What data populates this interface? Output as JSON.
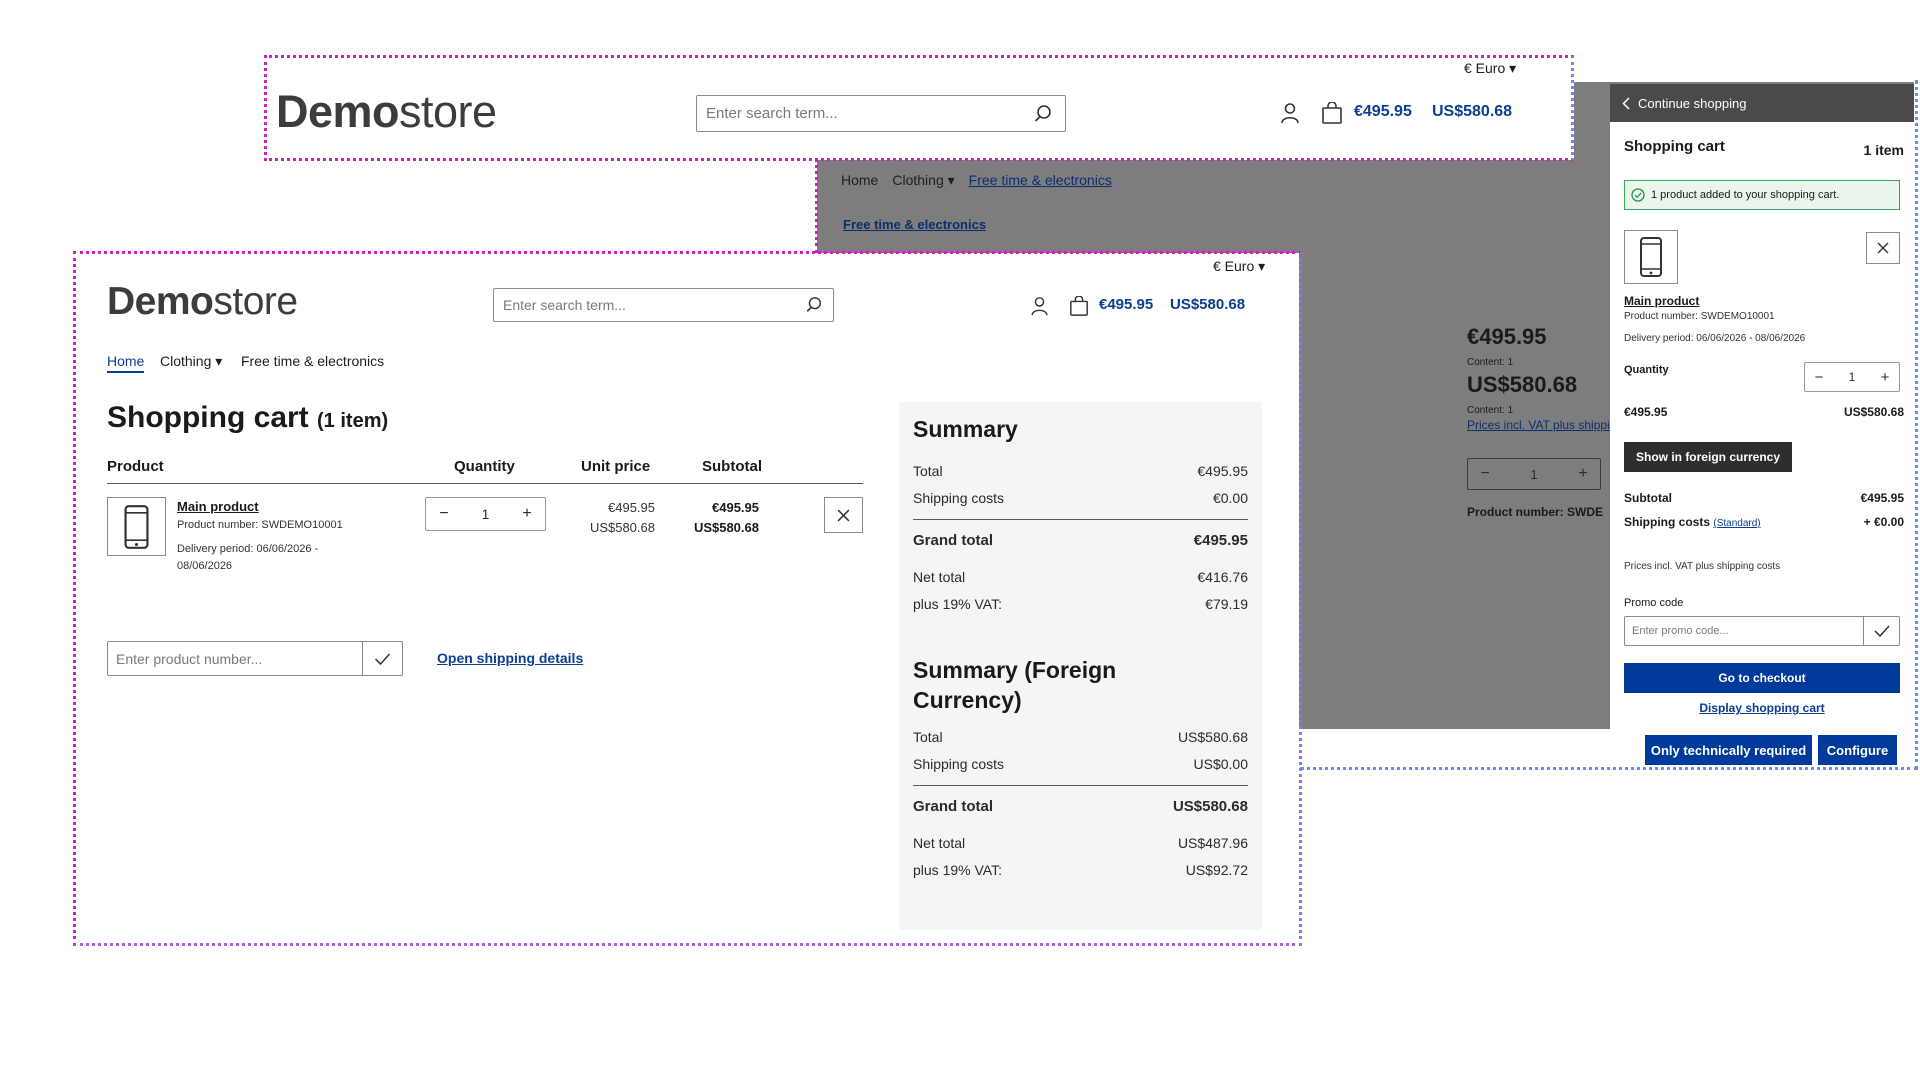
{
  "brand": {
    "bold": "Demo",
    "light": "store"
  },
  "header": {
    "currency": "€ Euro",
    "search_placeholder": "Enter search term...",
    "cart_total_eur": "€495.95",
    "cart_total_usd": "US$580.68"
  },
  "nav": {
    "home": "Home",
    "clothing": "Clothing",
    "free_time": "Free time & electronics"
  },
  "back_page": {
    "category_link": "Free time & electronics",
    "price_eur": "€495.95",
    "content_1": "Content: 1",
    "price_usd": "US$580.68",
    "content_2": "Content: 1",
    "vat_link": "Prices incl. VAT plus shippi",
    "qty": "1",
    "product_number": "Product number: SWDE"
  },
  "offcanvas": {
    "continue": "Continue shopping",
    "title": "Shopping cart",
    "count": "1 item",
    "alert": "1 product added to your shopping cart.",
    "product_name": "Main product",
    "product_number": "Product number: SWDEMO10001",
    "delivery": "Delivery period: 06/06/2026 - 08/06/2026",
    "quantity_label": "Quantity",
    "qty": "1",
    "price_eur": "€495.95",
    "price_usd": "US$580.68",
    "foreign_btn": "Show in foreign currency",
    "subtotal_label": "Subtotal",
    "subtotal_value": "€495.95",
    "shipping_label": "Shipping costs",
    "shipping_link": "(Standard)",
    "shipping_value": "+ €0.00",
    "vat_note": "Prices incl. VAT plus shipping costs",
    "promo_label": "Promo code",
    "promo_placeholder": "Enter promo code...",
    "checkout_btn": "Go to checkout",
    "display_cart": "Display shopping cart"
  },
  "cookie": {
    "required_btn": "Only technically required",
    "configure_btn": "Configure"
  },
  "cart": {
    "title": "Shopping cart",
    "count": "(1 item)",
    "col_product": "Product",
    "col_quantity": "Quantity",
    "col_unit_price": "Unit price",
    "col_subtotal": "Subtotal",
    "item": {
      "name": "Main product",
      "number": "Product number: SWDEMO10001",
      "delivery_1": "Delivery period: 06/06/2026 -",
      "delivery_2": "08/06/2026",
      "qty": "1",
      "unit_eur": "€495.95",
      "unit_usd": "US$580.68",
      "sub_eur": "€495.95",
      "sub_usd": "US$580.68"
    },
    "product_number_placeholder": "Enter product number...",
    "shipping_details": "Open shipping details"
  },
  "summary": {
    "title": "Summary",
    "total_label": "Total",
    "total_value": "€495.95",
    "shipping_label": "Shipping costs",
    "shipping_value": "€0.00",
    "grand_label": "Grand total",
    "grand_value": "€495.95",
    "net_label": "Net total",
    "net_value": "€416.76",
    "vat_label": "plus 19% VAT:",
    "vat_value": "€79.19"
  },
  "summary_foreign": {
    "title_1": "Summary (Foreign",
    "title_2": "Currency)",
    "total_label": "Total",
    "total_value": "US$580.68",
    "shipping_label": "Shipping costs",
    "shipping_value": "US$0.00",
    "grand_label": "Grand total",
    "grand_value": "US$580.68",
    "net_label": "Net total",
    "net_value": "US$487.96",
    "vat_label": "plus 19% VAT:",
    "vat_value": "US$92.72"
  }
}
